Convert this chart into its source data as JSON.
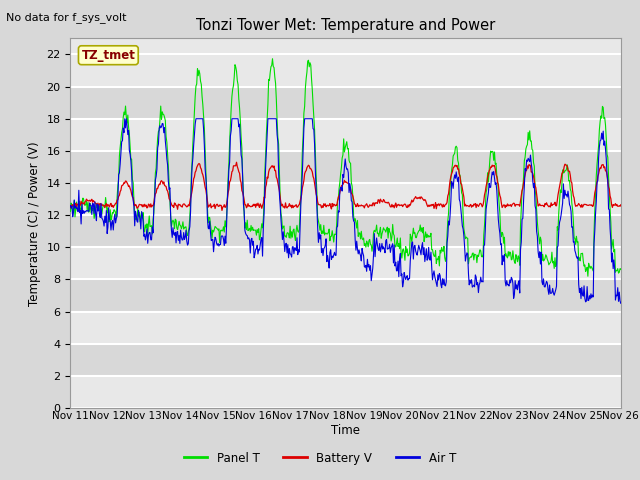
{
  "title": "Tonzi Tower Met: Temperature and Power",
  "top_left_text": "No data for f_sys_volt",
  "ylabel": "Temperature (C) / Power (V)",
  "xlabel": "Time",
  "ylim": [
    0,
    23
  ],
  "yticks": [
    0,
    2,
    4,
    6,
    8,
    10,
    12,
    14,
    16,
    18,
    20,
    22
  ],
  "x_tick_labels": [
    "Nov 11",
    "Nov 12",
    "Nov 13",
    "Nov 14",
    "Nov 15",
    "Nov 16",
    "Nov 17",
    "Nov 18",
    "Nov 19",
    "Nov 20",
    "Nov 21",
    "Nov 22",
    "Nov 23",
    "Nov 24",
    "Nov 25",
    "Nov 26"
  ],
  "annotation_label": "TZ_tmet",
  "bg_color": "#d8d8d8",
  "plot_bg_color": "#e8e8e8",
  "panel_t_color": "#00dd00",
  "battery_v_color": "#dd0000",
  "air_t_color": "#0000dd",
  "legend_labels": [
    "Panel T",
    "Battery V",
    "Air T"
  ],
  "figsize": [
    6.4,
    4.8
  ],
  "dpi": 100
}
